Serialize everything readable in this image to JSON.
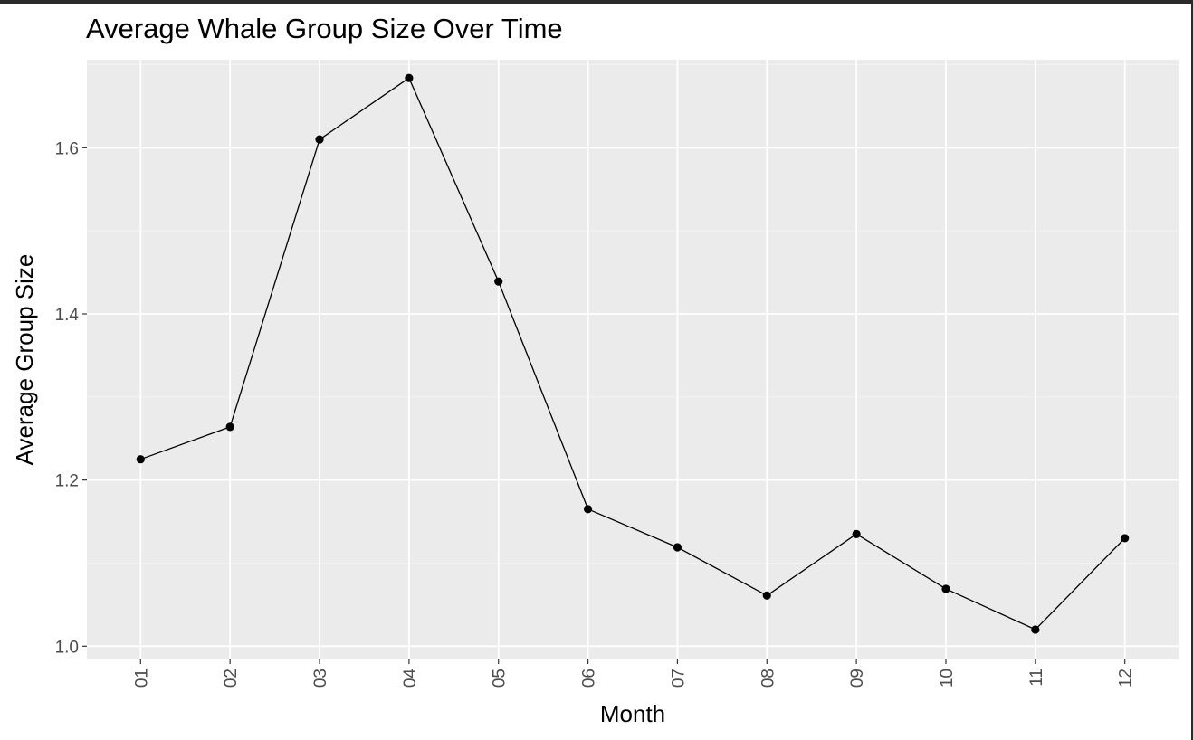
{
  "chart_data": {
    "type": "line",
    "title": "Average Whale Group Size Over Time",
    "xlabel": "Month",
    "ylabel": "Average Group Size",
    "categories": [
      "01",
      "02",
      "03",
      "04",
      "05",
      "06",
      "07",
      "08",
      "09",
      "10",
      "11",
      "12"
    ],
    "values": [
      1.225,
      1.264,
      1.61,
      1.684,
      1.439,
      1.165,
      1.119,
      1.061,
      1.135,
      1.069,
      1.02,
      1.13
    ],
    "ylim": [
      0.984,
      1.706
    ],
    "yticks": [
      1.0,
      1.2,
      1.4,
      1.6
    ],
    "ytick_labels": [
      "1.0",
      "1.2",
      "1.4",
      "1.6"
    ],
    "grid": true,
    "legend": "none",
    "colors": {
      "panel_background": "#ebebeb",
      "grid_major": "#ffffff",
      "grid_minor": "#f2f2f2",
      "line": "#000000",
      "point": "#000000",
      "tick_text": "#4d4d4d"
    }
  }
}
